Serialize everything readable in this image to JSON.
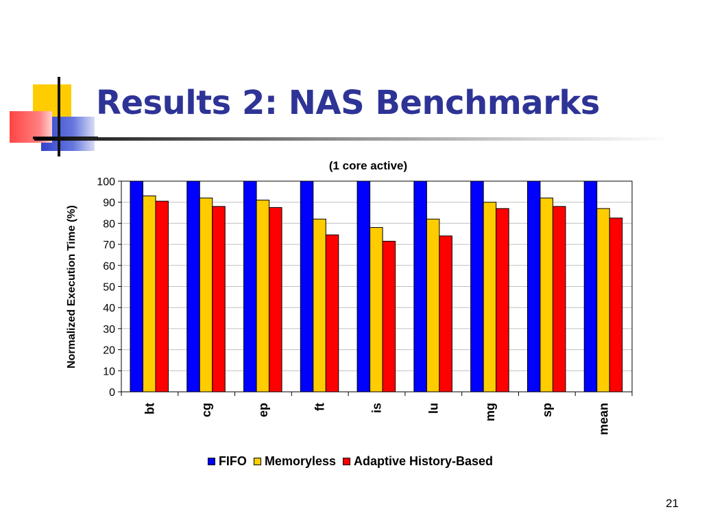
{
  "slide": {
    "title": "Results 2: NAS Benchmarks",
    "page_number": "21"
  },
  "chart_data": {
    "type": "bar",
    "title": "(1 core active)",
    "xlabel": "",
    "ylabel": "Normalized Execution Time (%)",
    "ylim": [
      0,
      100
    ],
    "yticks": [
      0,
      10,
      20,
      30,
      40,
      50,
      60,
      70,
      80,
      90,
      100
    ],
    "categories": [
      "bt",
      "cg",
      "ep",
      "ft",
      "is",
      "lu",
      "mg",
      "sp",
      "mean"
    ],
    "series": [
      {
        "name": "FIFO",
        "color": "#0000ff",
        "values": [
          100,
          100,
          100,
          100,
          100,
          100,
          100,
          100,
          100
        ]
      },
      {
        "name": "Memoryless",
        "color": "#ffcc00",
        "values": [
          93,
          92,
          91,
          82,
          78,
          82,
          90,
          92,
          87
        ]
      },
      {
        "name": "Adaptive History-Based",
        "color": "#ff0000",
        "values": [
          90.5,
          88,
          87.5,
          74.5,
          71.5,
          74,
          87,
          88,
          82.5
        ]
      }
    ],
    "grid": true,
    "legend_position": "bottom"
  }
}
